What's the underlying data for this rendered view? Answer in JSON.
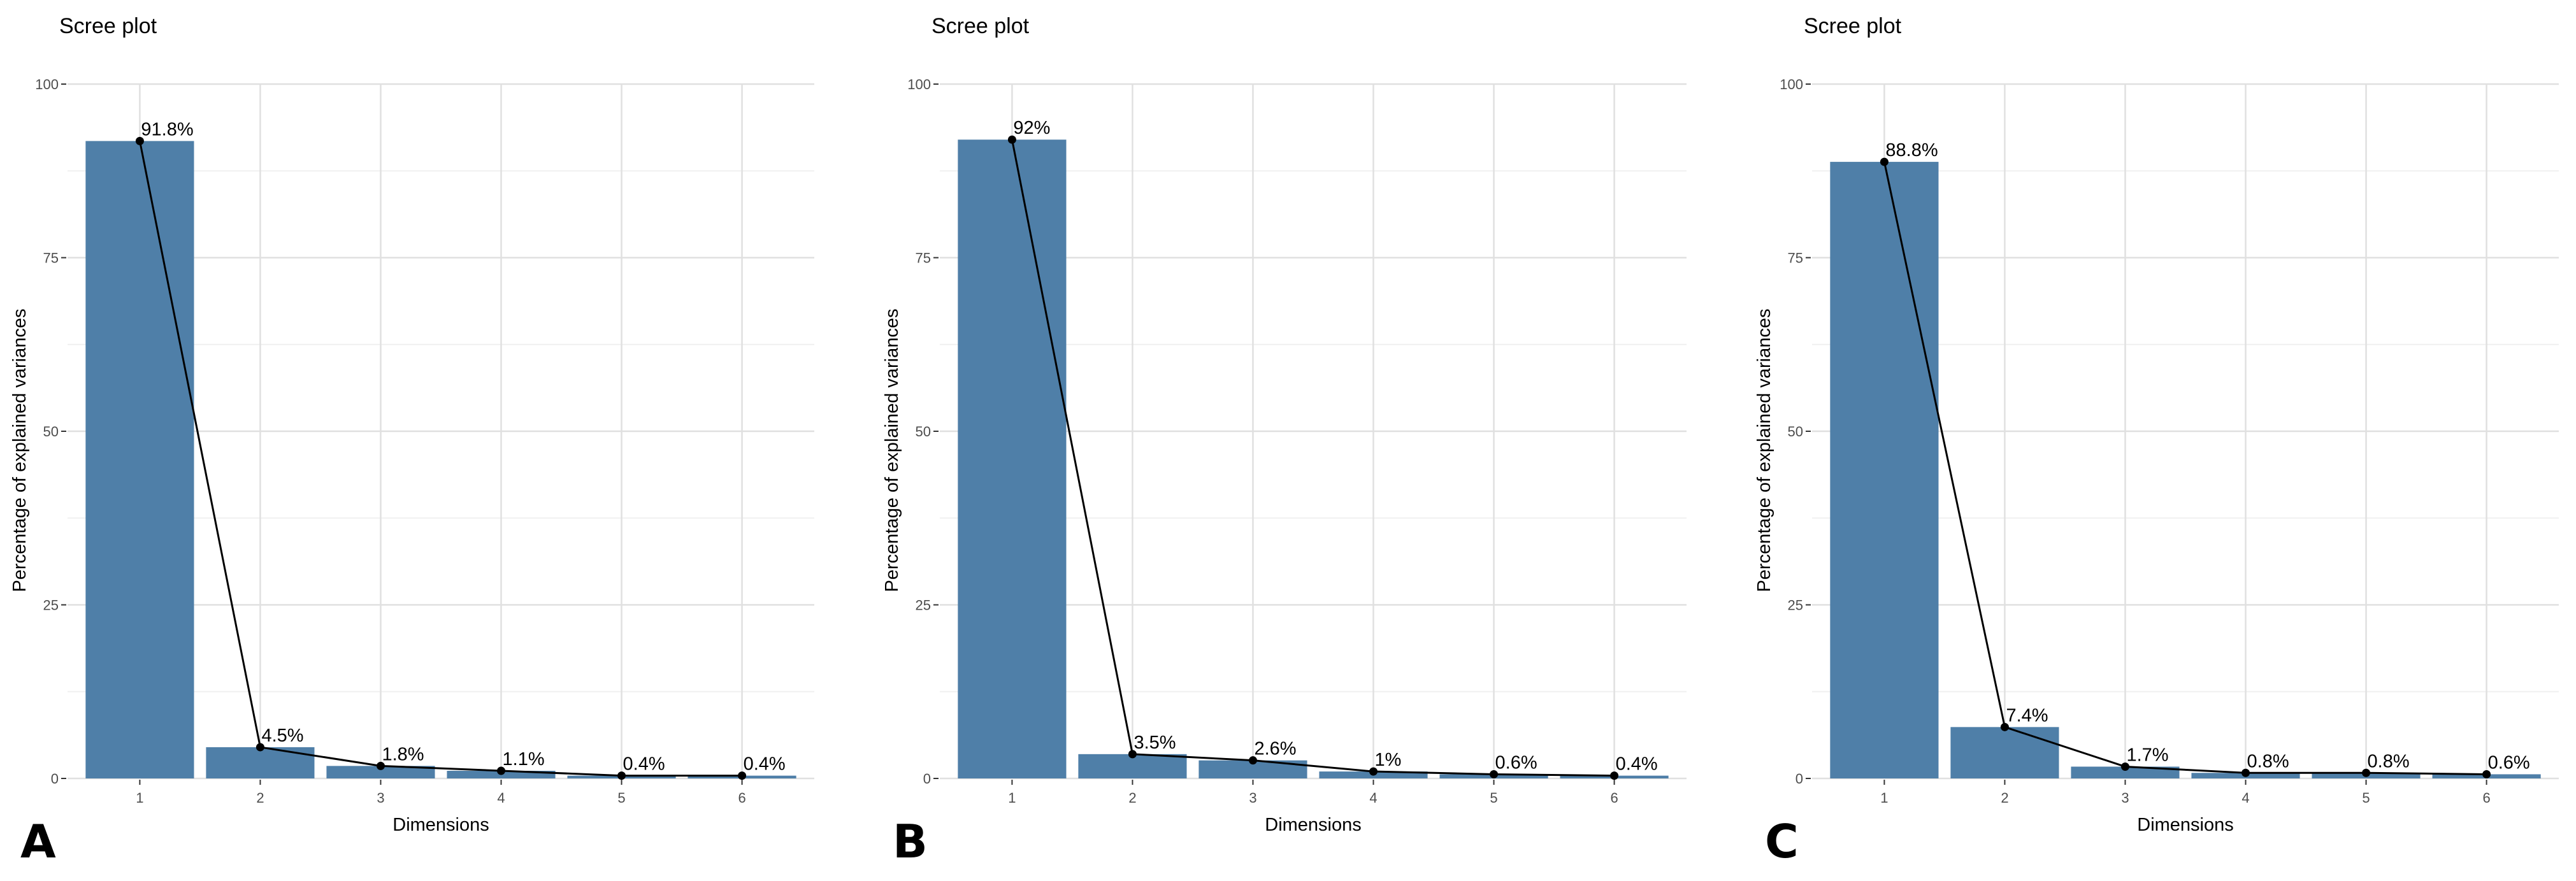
{
  "chart_data": [
    {
      "type": "bar",
      "panel_letter": "A",
      "title": "Scree plot",
      "xlabel": "Dimensions",
      "ylabel": "Percentage of explained variances",
      "categories": [
        "1",
        "2",
        "3",
        "4",
        "5",
        "6"
      ],
      "values": [
        91.8,
        4.5,
        1.8,
        1.1,
        0.4,
        0.4
      ],
      "value_labels": [
        "91.8%",
        "4.5%",
        "1.8%",
        "1.1%",
        "0.4%",
        "0.4%"
      ],
      "ylim": [
        0,
        100
      ],
      "yticks": [
        "0",
        "25",
        "50",
        "75",
        "100"
      ],
      "grid": true,
      "overlay": "line with points",
      "bar_color": "#4f7fa8",
      "line_color": "#000000"
    },
    {
      "type": "bar",
      "panel_letter": "B",
      "title": "Scree plot",
      "xlabel": "Dimensions",
      "ylabel": "Percentage of explained variances",
      "categories": [
        "1",
        "2",
        "3",
        "4",
        "5",
        "6"
      ],
      "values": [
        92,
        3.5,
        2.6,
        1,
        0.6,
        0.4
      ],
      "value_labels": [
        "92%",
        "3.5%",
        "2.6%",
        "1%",
        "0.6%",
        "0.4%"
      ],
      "ylim": [
        0,
        100
      ],
      "yticks": [
        "0",
        "25",
        "50",
        "75",
        "100"
      ],
      "grid": true,
      "overlay": "line with points",
      "bar_color": "#4f7fa8",
      "line_color": "#000000"
    },
    {
      "type": "bar",
      "panel_letter": "C",
      "title": "Scree plot",
      "xlabel": "Dimensions",
      "ylabel": "Percentage of explained variances",
      "categories": [
        "1",
        "2",
        "3",
        "4",
        "5",
        "6"
      ],
      "values": [
        88.8,
        7.4,
        1.7,
        0.8,
        0.8,
        0.6
      ],
      "value_labels": [
        "88.8%",
        "7.4%",
        "1.7%",
        "0.8%",
        "0.8%",
        "0.6%"
      ],
      "ylim": [
        0,
        100
      ],
      "yticks": [
        "0",
        "25",
        "50",
        "75",
        "100"
      ],
      "grid": true,
      "overlay": "line with points",
      "bar_color": "#4f7fa8",
      "line_color": "#000000"
    }
  ]
}
